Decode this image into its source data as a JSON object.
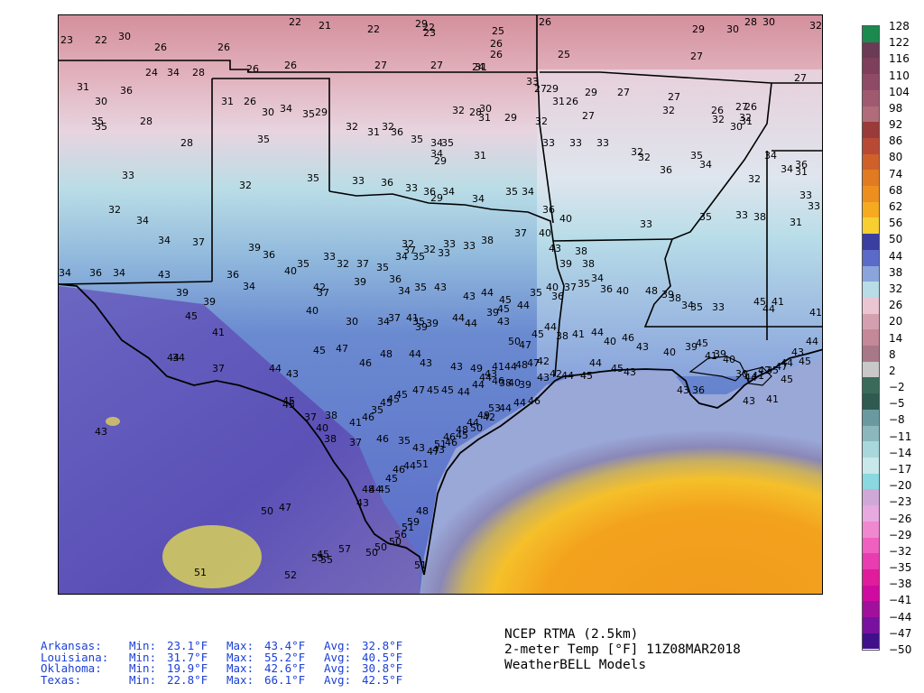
{
  "title": {
    "line1": "NCEP RTMA (2.5km)",
    "line2": "2-meter Temp [°F] 11Z08MAR2018",
    "line3": "WeatherBELL Models"
  },
  "stats_labels": {
    "min": "Min:",
    "max": "Max:",
    "avg": "Avg:"
  },
  "stats": [
    {
      "state": "Arkansas:",
      "min": "23.1°F",
      "max": "43.4°F",
      "avg": "32.8°F"
    },
    {
      "state": "Louisiana:",
      "min": "31.7°F",
      "max": "55.2°F",
      "avg": "40.5°F"
    },
    {
      "state": "Oklahoma:",
      "min": "19.9°F",
      "max": "42.6°F",
      "avg": "30.8°F"
    },
    {
      "state": "Texas:",
      "min": "22.8°F",
      "max": "66.1°F",
      "avg": "42.5°F"
    }
  ],
  "colorbar": {
    "ticks": [
      "128",
      "122",
      "116",
      "110",
      "104",
      "98",
      "92",
      "86",
      "80",
      "74",
      "68",
      "62",
      "56",
      "50",
      "44",
      "38",
      "32",
      "26",
      "20",
      "14",
      "8",
      "2",
      "−2",
      "−5",
      "−8",
      "−11",
      "−14",
      "−17",
      "−20",
      "−23",
      "−26",
      "−29",
      "−32",
      "−35",
      "−38",
      "−41",
      "−44",
      "−47",
      "−50"
    ],
    "colors": [
      "#1a8a4e",
      "#6b3a55",
      "#7d3f5c",
      "#8f4a66",
      "#a05a70",
      "#b06c7a",
      "#9a3a3a",
      "#b84a35",
      "#d0602a",
      "#e27a22",
      "#ee8e1e",
      "#f5aa20",
      "#f6cf30",
      "#3a3ea0",
      "#5a6ac8",
      "#8aa4dc",
      "#b8dde6",
      "#eac6d2",
      "#d4a0b0",
      "#c48898",
      "#a87888",
      "#c8c8c8",
      "#3a6a5a",
      "#2e5a50",
      "#6a9aa0",
      "#8ab8bc",
      "#a8d8dc",
      "#c8e8ec",
      "#8ad8e0",
      "#d0a8d8",
      "#e8a8e0",
      "#f088d0",
      "#f060c0",
      "#e83cb0",
      "#e01c9c",
      "#d00aa0",
      "#a0109c",
      "#7810a0",
      "#40108c"
    ]
  },
  "labels": [
    "23",
    "22",
    "30",
    "26",
    "26",
    "22",
    "21",
    "22",
    "22",
    "23",
    "25",
    "26",
    "26",
    "25",
    "26",
    "29",
    "30",
    "28",
    "30",
    "32",
    "24",
    "28",
    "26",
    "26",
    "27",
    "27",
    "24",
    "31",
    "33",
    "27",
    "29",
    "29",
    "27",
    "27",
    "27",
    "26",
    "27",
    "26",
    "27",
    "31",
    "30",
    "36",
    "34",
    "31",
    "26",
    "30",
    "34",
    "35",
    "29",
    "29",
    "28",
    "31",
    "32",
    "30",
    "29",
    "32",
    "31",
    "26",
    "27",
    "32",
    "32",
    "30",
    "32",
    "31",
    "34",
    "34",
    "36",
    "31",
    "35",
    "35",
    "28",
    "28",
    "35",
    "32",
    "31",
    "32",
    "36",
    "35",
    "34",
    "35",
    "34",
    "29",
    "31",
    "33",
    "33",
    "33",
    "32",
    "32",
    "36",
    "35",
    "34",
    "32",
    "33",
    "33",
    "33",
    "32",
    "35",
    "33",
    "36",
    "33",
    "36",
    "29",
    "34",
    "34",
    "35",
    "34",
    "36",
    "40",
    "33",
    "35",
    "33",
    "38",
    "31",
    "32",
    "34",
    "34",
    "37",
    "39",
    "36",
    "35",
    "33",
    "32",
    "37",
    "35",
    "34",
    "32",
    "37",
    "35",
    "32",
    "33",
    "33",
    "33",
    "38",
    "37",
    "40",
    "43",
    "39",
    "38",
    "38",
    "34",
    "36",
    "34",
    "43",
    "39",
    "39",
    "36",
    "34",
    "40",
    "42",
    "37",
    "39",
    "36",
    "34",
    "35",
    "43",
    "43",
    "44",
    "45",
    "44",
    "35",
    "40",
    "36",
    "37",
    "35",
    "34",
    "36",
    "40",
    "48",
    "39",
    "38",
    "34",
    "35",
    "33",
    "45",
    "44",
    "41",
    "41",
    "45",
    "41",
    "40",
    "30",
    "34",
    "37",
    "41",
    "35",
    "39",
    "39",
    "44",
    "44",
    "39",
    "45",
    "43",
    "50",
    "47",
    "45",
    "44",
    "38",
    "41",
    "44",
    "40",
    "46",
    "43",
    "40",
    "39",
    "45",
    "41",
    "39",
    "40",
    "30",
    "44",
    "41",
    "42",
    "35",
    "47",
    "44",
    "43",
    "44",
    "44",
    "34",
    "37",
    "44",
    "43",
    "45",
    "47",
    "46",
    "48",
    "44",
    "43",
    "43",
    "49",
    "44",
    "46",
    "38",
    "40",
    "39",
    "43",
    "42",
    "44",
    "45",
    "44",
    "45",
    "43",
    "43",
    "36",
    "43",
    "41",
    "45",
    "45",
    "45",
    "45",
    "37",
    "40",
    "38",
    "41",
    "46",
    "35",
    "45",
    "45",
    "45",
    "47",
    "45",
    "45",
    "44",
    "44",
    "43",
    "41",
    "44",
    "48",
    "47",
    "42",
    "43",
    "38",
    "37",
    "46",
    "35",
    "43",
    "43",
    "46",
    "45",
    "50",
    "42",
    "44",
    "44",
    "46",
    "50",
    "47",
    "45",
    "43",
    "48",
    "44",
    "45",
    "45",
    "46",
    "44",
    "51",
    "47",
    "51",
    "46",
    "48",
    "44",
    "49",
    "53",
    "51",
    "52",
    "55",
    "55",
    "57",
    "50",
    "50",
    "50",
    "56",
    "51",
    "59",
    "48",
    "51"
  ]
}
